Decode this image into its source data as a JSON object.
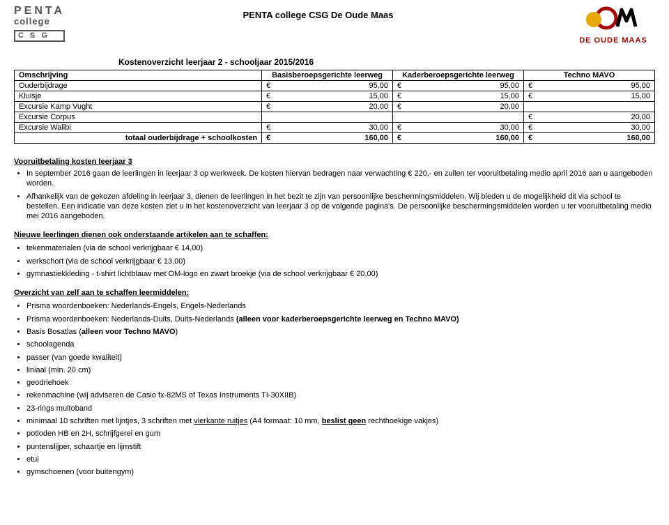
{
  "header": {
    "logo_left_l1": "PENTA",
    "logo_left_l2": "college",
    "logo_left_csg": "C S G",
    "title": "PENTA college CSG De Oude Maas",
    "logo_right_text": "DE OUDE MAAS"
  },
  "subtitle": "Kostenoverzicht leerjaar 2 - schooljaar 2015/2016",
  "table": {
    "col_desc": "Omschrijving",
    "col1": "Basisberoepsgerichte leerweg",
    "col2": "Kaderberoepsgerichte leerweg",
    "col3": "Techno MAVO",
    "rows": [
      {
        "desc": "Ouderbijdrage",
        "c1": "95,00",
        "c2": "95,00",
        "c3": "95,00"
      },
      {
        "desc": "Kluisje",
        "c1": "15,00",
        "c2": "15,00",
        "c3": "15,00"
      },
      {
        "desc": "Excursie Kamp Vught",
        "c1": "20,00",
        "c2": "20,00",
        "c3": ""
      },
      {
        "desc": "Excursie Corpus",
        "c1": "",
        "c2": "",
        "c3": "20,00"
      },
      {
        "desc": "Excursie Walibi",
        "c1": "30,00",
        "c2": "30,00",
        "c3": "30,00"
      }
    ],
    "total_label": "totaal ouderbijdrage + schoolkosten",
    "total": {
      "c1": "160,00",
      "c2": "160,00",
      "c3": "160,00"
    },
    "currency": "€"
  },
  "vooruit": {
    "heading": "Vooruitbetaling kosten leerjaar 3",
    "p1": "In september 2016 gaan de leerlingen in leerjaar 3 op werkweek. De kosten hiervan bedragen naar verwachting € 220,- en zullen ter vooruitbetaling medio april 2016 aan u aangeboden worden.",
    "p2": "Afhankelijk van de gekozen afdeling in leerjaar 3, dienen de leerlingen in het bezit te zijn van persoonlijke beschermingsmiddelen. Wij bieden u de mogelijkheid dit via school te bestellen. Een indicatie van deze kosten ziet u in het kostenoverzicht van leerjaar 3 op de volgende pagina's. De persoonlijke beschermingsmiddelen worden u ter vooruitbetaling medio mei 2016 aangeboden."
  },
  "nieuwe": {
    "heading": "Nieuwe leerlingen dienen ook onderstaande artikelen aan te schaffen:",
    "items": [
      "tekenmaterialen (via de school verkrijgbaar € 14,00)",
      "werkschort (via de school verkrijgbaar € 13,00)",
      "gymnastiekkleding - t-shirt lichtblauw met OM-logo en zwart broekje (via de school verkrijgbaar € 20,00)"
    ]
  },
  "overzicht": {
    "heading": "Overzicht van zelf aan te schaffen leermiddelen:",
    "it0": "Prisma woordenboeken: Nederlands-Engels, Engels-Nederlands",
    "it1_a": "Prisma woordenboeken: Nederlands-Duits, Duits-Nederlands ",
    "it1_b": "(alleen voor kaderberoepsgerichte leerweg en Techno MAVO)",
    "it2_a": "Basis Bosatlas (",
    "it2_b": "alleen voor Techno MAVO",
    "it2_c": ")",
    "it3": "schoolagenda",
    "it4": "passer (van goede kwaliteit)",
    "it5": "liniaal (min. 20 cm)",
    "it6": "geodriehoek",
    "it7": "rekenmachine (wij adviseren de Casio fx-82MS of Texas Instruments TI-30XIIB)",
    "it8": "23-rings multoband",
    "it9_a": "minimaal 10 schriften met lijntjes, 3 schriften met ",
    "it9_b": "vierkante ruitjes",
    "it9_c": " (A4 formaat: 10 mm, ",
    "it9_d": "beslist geen",
    "it9_e": " rechthoekige vakjes)",
    "it10": "potloden HB en 2H, schrijfgerei en gum",
    "it11": "puntenslijper, schaartje en lijmstift",
    "it12": "etui",
    "it13": "gymschoenen (voor buitengym)"
  }
}
